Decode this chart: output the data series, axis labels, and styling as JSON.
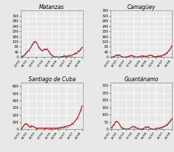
{
  "titles": [
    "Matanzas",
    "Camagüey",
    "Santiago de Cuba",
    "Guantánamo"
  ],
  "background_color": "#e8e8e8",
  "plot_bg_color": "#e8e8e8",
  "line_color": "#cc0000",
  "dot_color": "#222222",
  "grid_color": "#ffffff",
  "n_points": 55,
  "x_ticks": [
    "01/02",
    "26/02",
    "23/03",
    "17/04",
    "12/05",
    "06/06",
    "01/07",
    "26/07",
    "20/08"
  ],
  "ylim_matanzas": [
    0,
    360
  ],
  "ylim_camaguey": [
    0,
    360
  ],
  "ylim_santiago": [
    0,
    650
  ],
  "ylim_guantanamo": [
    0,
    320
  ],
  "yticks_matanzas": [
    0,
    40,
    80,
    120,
    160,
    200,
    240,
    280,
    320
  ],
  "yticks_camaguey": [
    0,
    40,
    80,
    120,
    160,
    200,
    240,
    280,
    320,
    360
  ],
  "yticks_santiago": [
    0,
    100,
    200,
    300,
    400,
    500,
    600
  ],
  "yticks_guantanamo": [
    0,
    50,
    100,
    150,
    200,
    250,
    300
  ],
  "title_fontsize": 5.5,
  "tick_fontsize": 3.5
}
